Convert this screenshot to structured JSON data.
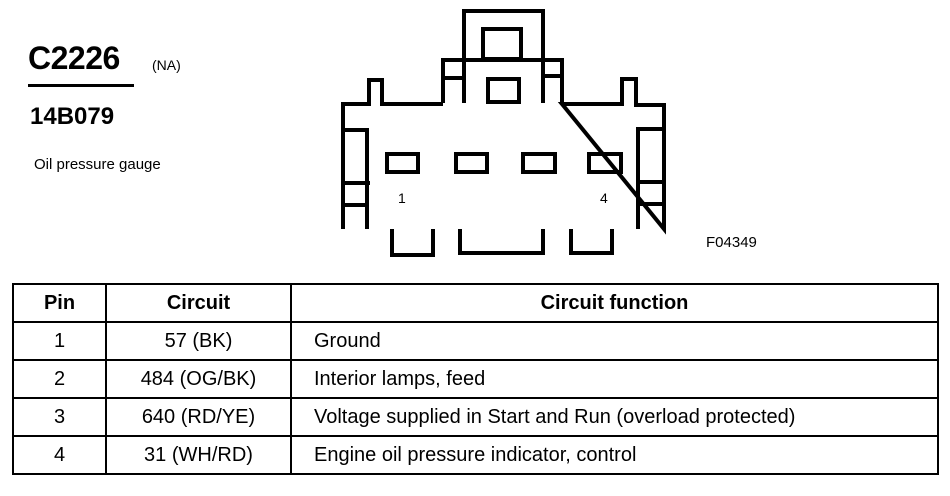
{
  "header": {
    "connector_id": "C2226",
    "region": "(NA)",
    "part_number": "14B079",
    "description": "Oil pressure gauge"
  },
  "diagram": {
    "pin_labels": [
      "1",
      "4"
    ],
    "figure_id": "F04349"
  },
  "table": {
    "headers": [
      "Pin",
      "Circuit",
      "Circuit function"
    ],
    "rows": [
      {
        "pin": "1",
        "circuit": "57 (BK)",
        "function": "Ground"
      },
      {
        "pin": "2",
        "circuit": "484 (OG/BK)",
        "function": "Interior lamps, feed"
      },
      {
        "pin": "3",
        "circuit": "640 (RD/YE)",
        "function": "Voltage supplied in Start and Run (overload protected)"
      },
      {
        "pin": "4",
        "circuit": "31 (WH/RD)",
        "function": "Engine oil pressure indicator, control"
      }
    ]
  }
}
